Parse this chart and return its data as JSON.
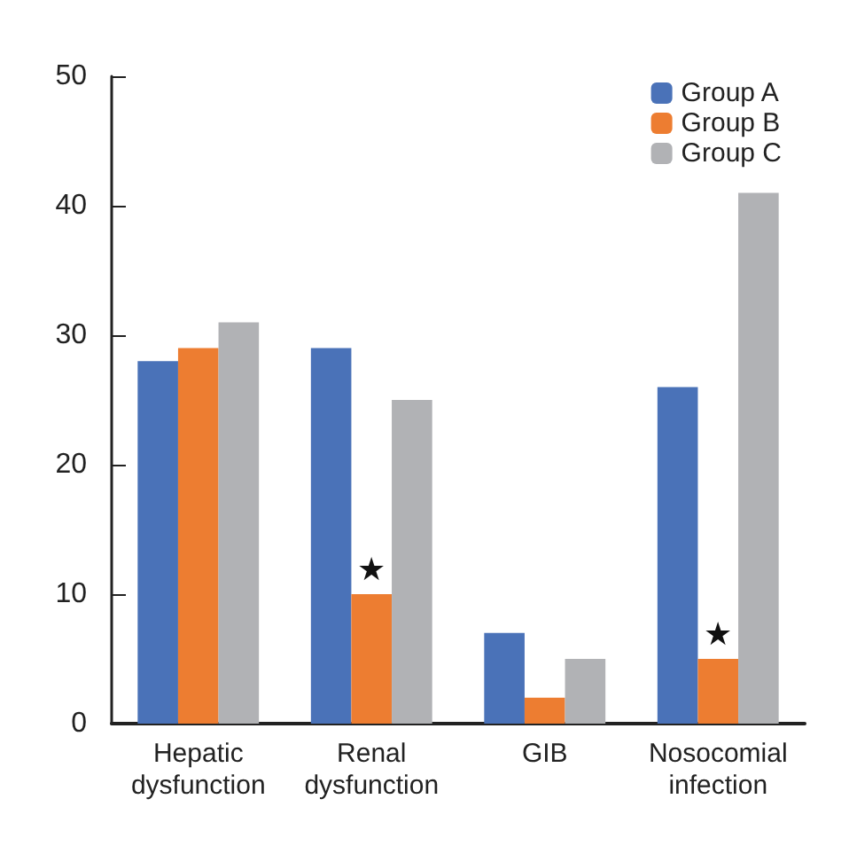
{
  "chart_data": {
    "type": "bar",
    "categories": [
      "Hepatic\ndysfunction",
      "Renal\ndysfunction",
      "GIB",
      "Nosocomial\ninfection"
    ],
    "series": [
      {
        "name": "Group A",
        "color": "#4a72b8",
        "values": [
          28,
          29,
          7,
          26
        ]
      },
      {
        "name": "Group B",
        "color": "#ed7d31",
        "values": [
          29,
          10,
          2,
          5
        ]
      },
      {
        "name": "Group C",
        "color": "#b1b2b5",
        "values": [
          31,
          25,
          5,
          41
        ]
      }
    ],
    "ylim": [
      0,
      50
    ],
    "yticks": [
      0,
      10,
      20,
      30,
      40,
      50
    ],
    "grid": false,
    "legend": "top right",
    "annotations": [
      {
        "text": "★",
        "x": "Renal\ndysfunction",
        "y": 10
      },
      {
        "text": "★",
        "x": "Nosocomial\ninfection",
        "y": 5
      }
    ]
  }
}
